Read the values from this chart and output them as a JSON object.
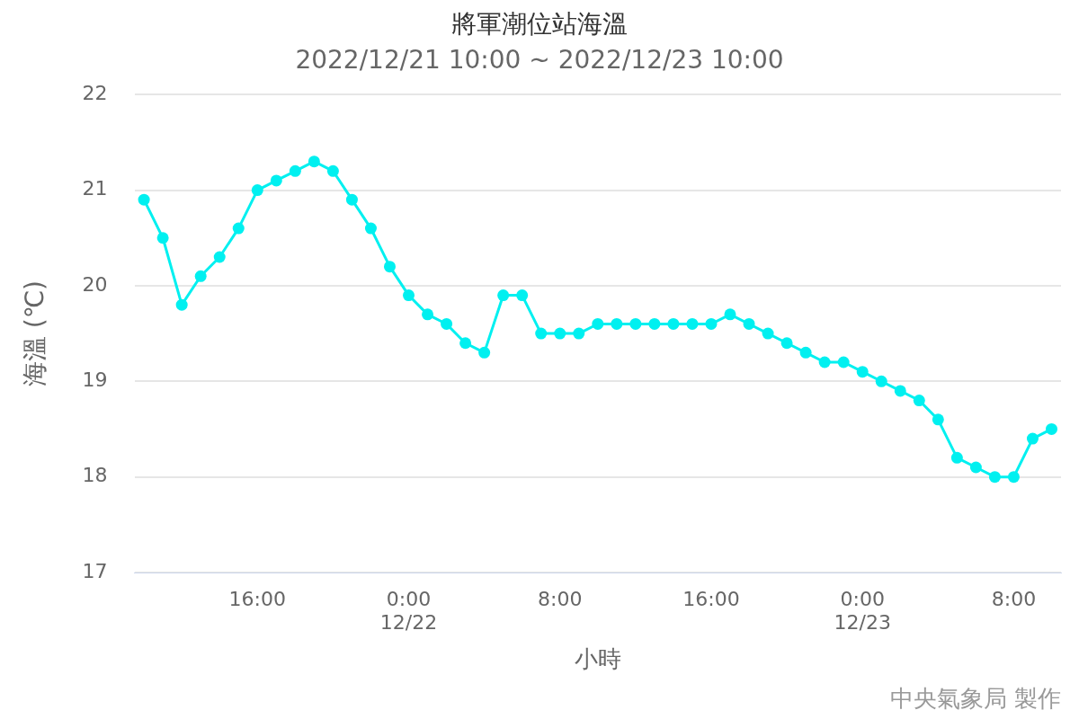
{
  "chart_data": {
    "type": "line",
    "title": "將軍潮位站海溫",
    "subtitle": "2022/12/21 10:00 ~ 2022/12/23 10:00",
    "xlabel": "小時",
    "ylabel": "海溫 (℃)",
    "x": [
      "2022-12-21T10:00",
      "2022-12-21T11:00",
      "2022-12-21T12:00",
      "2022-12-21T13:00",
      "2022-12-21T14:00",
      "2022-12-21T15:00",
      "2022-12-21T16:00",
      "2022-12-21T17:00",
      "2022-12-21T18:00",
      "2022-12-21T19:00",
      "2022-12-21T20:00",
      "2022-12-21T21:00",
      "2022-12-21T22:00",
      "2022-12-21T23:00",
      "2022-12-22T00:00",
      "2022-12-22T01:00",
      "2022-12-22T02:00",
      "2022-12-22T03:00",
      "2022-12-22T04:00",
      "2022-12-22T05:00",
      "2022-12-22T06:00",
      "2022-12-22T07:00",
      "2022-12-22T08:00",
      "2022-12-22T09:00",
      "2022-12-22T10:00",
      "2022-12-22T11:00",
      "2022-12-22T12:00",
      "2022-12-22T13:00",
      "2022-12-22T14:00",
      "2022-12-22T15:00",
      "2022-12-22T16:00",
      "2022-12-22T17:00",
      "2022-12-22T18:00",
      "2022-12-22T19:00",
      "2022-12-22T20:00",
      "2022-12-22T21:00",
      "2022-12-22T22:00",
      "2022-12-22T23:00",
      "2022-12-23T00:00",
      "2022-12-23T01:00",
      "2022-12-23T02:00",
      "2022-12-23T03:00",
      "2022-12-23T04:00",
      "2022-12-23T05:00",
      "2022-12-23T06:00",
      "2022-12-23T07:00",
      "2022-12-23T08:00",
      "2022-12-23T09:00",
      "2022-12-23T10:00"
    ],
    "series": [
      {
        "color": "#00f0f0",
        "values": [
          20.9,
          20.5,
          19.8,
          20.1,
          20.3,
          20.6,
          21.0,
          21.1,
          21.2,
          21.3,
          21.2,
          20.9,
          20.6,
          20.2,
          19.9,
          19.7,
          19.6,
          19.4,
          19.3,
          19.9,
          19.9,
          19.5,
          19.5,
          19.5,
          19.6,
          19.6,
          19.6,
          19.6,
          19.6,
          19.6,
          19.6,
          19.7,
          19.6,
          19.5,
          19.4,
          19.3,
          19.2,
          19.2,
          19.1,
          19.0,
          18.9,
          18.8,
          18.6,
          18.2,
          18.1,
          18.0,
          18.0,
          18.4,
          18.5
        ]
      }
    ],
    "xlim": [
      "2022-12-21T09:30",
      "2022-12-23T10:30"
    ],
    "xticks": [
      {
        "value": "2022-12-21T16:00",
        "label": "16:00"
      },
      {
        "value": "2022-12-22T00:00",
        "label": "0:00\n12/22"
      },
      {
        "value": "2022-12-22T08:00",
        "label": "8:00"
      },
      {
        "value": "2022-12-22T16:00",
        "label": "16:00"
      },
      {
        "value": "2022-12-23T00:00",
        "label": "0:00\n12/23"
      },
      {
        "value": "2022-12-23T08:00",
        "label": "8:00"
      }
    ],
    "ylim": [
      17,
      22
    ],
    "yticks": [
      17,
      18,
      19,
      20,
      21,
      22
    ],
    "grid": "y",
    "legend": false,
    "marker": "circle",
    "line_style": "solid",
    "annotations": [
      "中央氣象局 製作"
    ]
  }
}
